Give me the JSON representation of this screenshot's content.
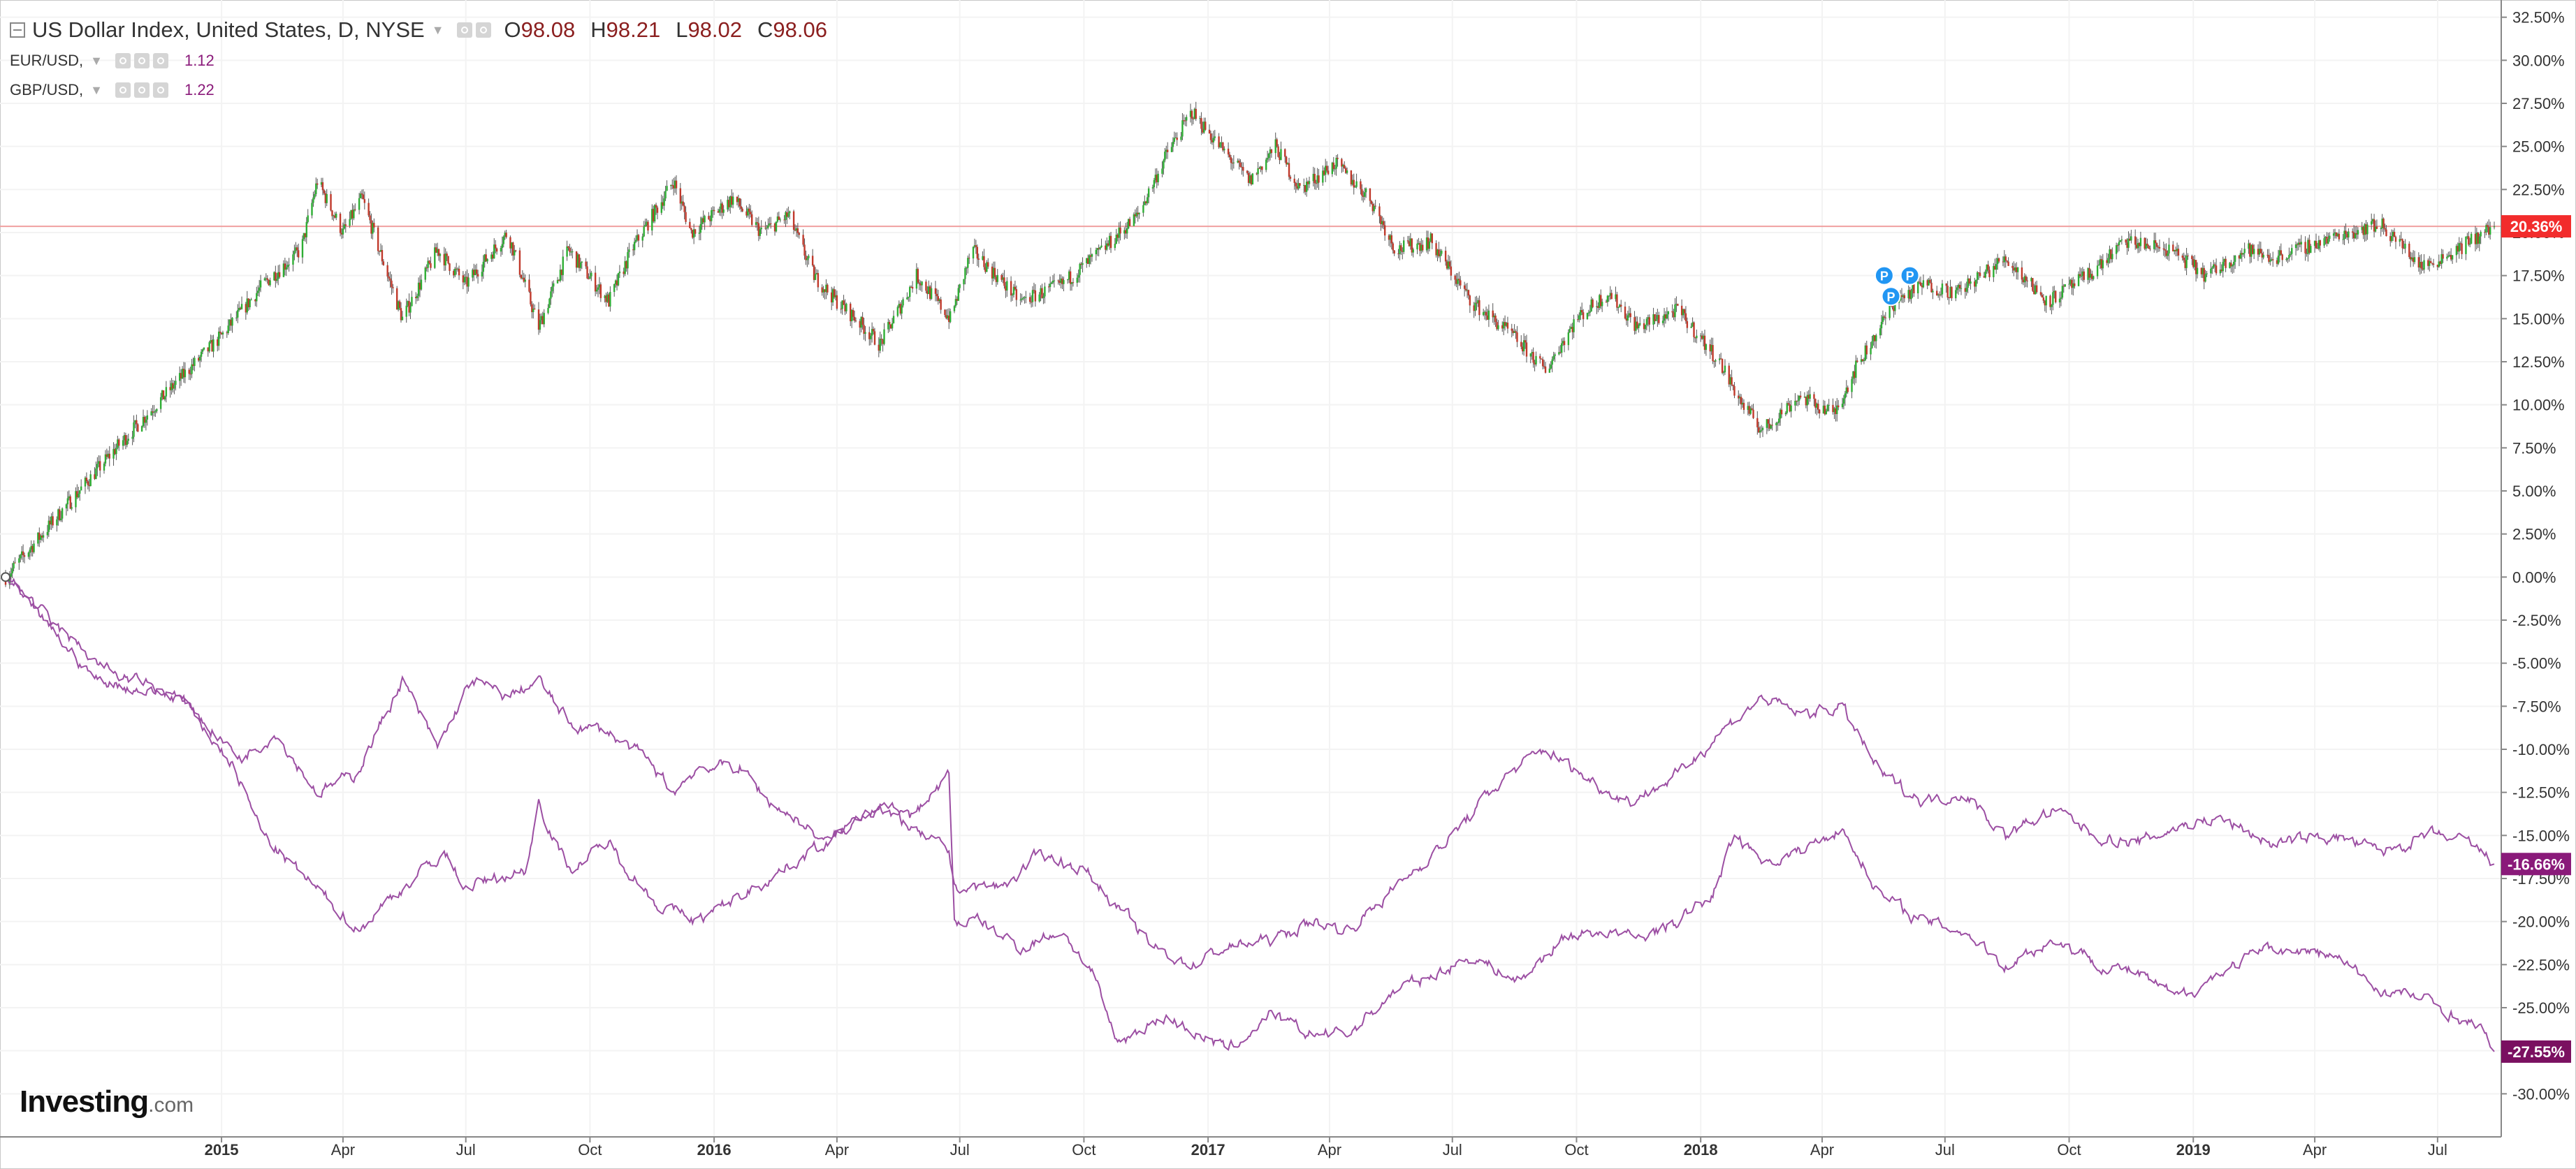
{
  "legend": {
    "main": {
      "title": "US Dollar Index, United States, D, NYSE",
      "o_label": "O",
      "o_value": "98.08",
      "h_label": "H",
      "h_value": "98.21",
      "l_label": "L",
      "l_value": "98.02",
      "c_label": "C",
      "c_value": "98.06"
    },
    "eur": {
      "name": "EUR/USD,",
      "value": "1.12"
    },
    "gbp": {
      "name": "GBP/USD,",
      "value": "1.22"
    }
  },
  "logo": {
    "main": "Investing",
    "suffix": ".com"
  },
  "colors": {
    "up": "#2eae34",
    "down": "#c0392b",
    "compare_line": "#9c4fa3",
    "last_price_line": "#f0a0a0",
    "last_price_badge": "#f22c2c",
    "eur_badge": "#8a1a7a",
    "gbp_badge": "#7a1060",
    "marker": "#2196f3",
    "grid": "#f3f3f3",
    "axis_line": "#888888",
    "axis_text": "#333333"
  },
  "chart_data": {
    "type": "line",
    "title": "US Dollar Index, United States, D, NYSE",
    "xlabel": "",
    "ylabel": "",
    "ylim": [
      -32.5,
      33.5
    ],
    "y_ticks": [
      "32.50%",
      "30.00%",
      "27.50%",
      "25.00%",
      "22.50%",
      "20.00%",
      "17.50%",
      "15.00%",
      "12.50%",
      "10.00%",
      "7.50%",
      "5.00%",
      "2.50%",
      "0.00%",
      "-2.50%",
      "-5.00%",
      "-7.50%",
      "-10.00%",
      "-12.50%",
      "-15.00%",
      "-17.50%",
      "-20.00%",
      "-22.50%",
      "-25.00%",
      "-27.50%",
      "-30.00%"
    ],
    "x_ticks": [
      {
        "label": "2015",
        "t": "2015-01-01",
        "bold": true
      },
      {
        "label": "Apr",
        "t": "2015-04-01",
        "bold": false
      },
      {
        "label": "Jul",
        "t": "2015-07-01",
        "bold": false
      },
      {
        "label": "Oct",
        "t": "2015-10-01",
        "bold": false
      },
      {
        "label": "2016",
        "t": "2016-01-01",
        "bold": true
      },
      {
        "label": "Apr",
        "t": "2016-04-01",
        "bold": false
      },
      {
        "label": "Jul",
        "t": "2016-07-01",
        "bold": false
      },
      {
        "label": "Oct",
        "t": "2016-10-01",
        "bold": false
      },
      {
        "label": "2017",
        "t": "2017-01-01",
        "bold": true
      },
      {
        "label": "Apr",
        "t": "2017-04-01",
        "bold": false
      },
      {
        "label": "Jul",
        "t": "2017-07-01",
        "bold": false
      },
      {
        "label": "Oct",
        "t": "2017-10-01",
        "bold": false
      },
      {
        "label": "2018",
        "t": "2018-01-01",
        "bold": true
      },
      {
        "label": "Apr",
        "t": "2018-04-01",
        "bold": false
      },
      {
        "label": "Jul",
        "t": "2018-07-01",
        "bold": false
      },
      {
        "label": "Oct",
        "t": "2018-10-01",
        "bold": false
      },
      {
        "label": "2019",
        "t": "2019-01-01",
        "bold": true
      },
      {
        "label": "Apr",
        "t": "2019-04-01",
        "bold": false
      },
      {
        "label": "Jul",
        "t": "2019-07-01",
        "bold": false
      }
    ],
    "x_start": "2014-07-25",
    "x_end": "2019-08-12",
    "series": [
      {
        "name": "US Dollar Index",
        "style": "candle",
        "last_label": "20.36%",
        "points": [
          [
            "2014-07-25",
            0
          ],
          [
            "2014-09-01",
            3.5
          ],
          [
            "2014-10-15",
            7.5
          ],
          [
            "2014-12-01",
            11.5
          ],
          [
            "2015-01-01",
            14
          ],
          [
            "2015-02-01",
            17
          ],
          [
            "2015-03-01",
            19
          ],
          [
            "2015-03-13",
            23
          ],
          [
            "2015-04-01",
            20
          ],
          [
            "2015-04-15",
            22
          ],
          [
            "2015-05-15",
            15
          ],
          [
            "2015-06-10",
            19
          ],
          [
            "2015-07-01",
            17
          ],
          [
            "2015-08-01",
            20
          ],
          [
            "2015-08-24",
            14.5
          ],
          [
            "2015-09-15",
            19
          ],
          [
            "2015-10-15",
            16
          ],
          [
            "2015-11-01",
            19
          ],
          [
            "2015-12-02",
            23
          ],
          [
            "2015-12-15",
            20
          ],
          [
            "2016-01-15",
            22
          ],
          [
            "2016-02-05",
            20
          ],
          [
            "2016-02-25",
            21
          ],
          [
            "2016-03-15",
            17.5
          ],
          [
            "2016-04-01",
            16
          ],
          [
            "2016-04-15",
            15
          ],
          [
            "2016-05-03",
            13.5
          ],
          [
            "2016-05-30",
            17.5
          ],
          [
            "2016-06-24",
            15
          ],
          [
            "2016-07-10",
            19
          ],
          [
            "2016-08-15",
            16
          ],
          [
            "2016-09-15",
            17
          ],
          [
            "2016-10-15",
            19
          ],
          [
            "2016-11-10",
            21
          ],
          [
            "2016-12-01",
            24.5
          ],
          [
            "2016-12-20",
            27
          ],
          [
            "2017-01-15",
            24.5
          ],
          [
            "2017-02-01",
            23
          ],
          [
            "2017-02-20",
            25
          ],
          [
            "2017-03-10",
            22.5
          ],
          [
            "2017-04-05",
            24
          ],
          [
            "2017-05-01",
            22
          ],
          [
            "2017-05-20",
            19
          ],
          [
            "2017-06-15",
            19.5
          ],
          [
            "2017-07-15",
            16
          ],
          [
            "2017-08-15",
            14
          ],
          [
            "2017-09-08",
            12
          ],
          [
            "2017-10-01",
            15
          ],
          [
            "2017-10-25",
            16.5
          ],
          [
            "2017-11-15",
            14.5
          ],
          [
            "2017-12-15",
            15.5
          ],
          [
            "2018-01-15",
            12.5
          ],
          [
            "2018-02-01",
            10
          ],
          [
            "2018-02-16",
            8.5
          ],
          [
            "2018-03-15",
            10.5
          ],
          [
            "2018-04-10",
            9.5
          ],
          [
            "2018-04-25",
            12
          ],
          [
            "2018-05-25",
            16
          ],
          [
            "2018-06-15",
            17
          ],
          [
            "2018-07-10",
            16.5
          ],
          [
            "2018-08-15",
            18.5
          ],
          [
            "2018-09-15",
            16
          ],
          [
            "2018-10-15",
            17.5
          ],
          [
            "2018-11-12",
            19.5
          ],
          [
            "2018-12-15",
            19
          ],
          [
            "2019-01-10",
            17.5
          ],
          [
            "2019-02-10",
            19
          ],
          [
            "2019-03-01",
            18.5
          ],
          [
            "2019-04-25",
            20
          ],
          [
            "2019-05-20",
            20.5
          ],
          [
            "2019-06-20",
            18
          ],
          [
            "2019-07-15",
            19
          ],
          [
            "2019-08-12",
            20.36
          ]
        ]
      },
      {
        "name": "EUR/USD",
        "style": "line",
        "last_label": "-16.66%",
        "points": [
          [
            "2014-07-25",
            0
          ],
          [
            "2014-09-01",
            -3.5
          ],
          [
            "2014-10-01",
            -6
          ],
          [
            "2014-12-01",
            -7
          ],
          [
            "2015-01-15",
            -10.5
          ],
          [
            "2015-02-10",
            -9
          ],
          [
            "2015-03-13",
            -12.5
          ],
          [
            "2015-04-10",
            -11.5
          ],
          [
            "2015-05-15",
            -6
          ],
          [
            "2015-06-10",
            -10
          ],
          [
            "2015-07-05",
            -6
          ],
          [
            "2015-08-01",
            -7
          ],
          [
            "2015-08-24",
            -6
          ],
          [
            "2015-09-15",
            -8.5
          ],
          [
            "2015-10-15",
            -9
          ],
          [
            "2015-11-10",
            -10.5
          ],
          [
            "2015-12-02",
            -12.5
          ],
          [
            "2015-12-20",
            -11
          ],
          [
            "2016-01-20",
            -11
          ],
          [
            "2016-02-10",
            -13
          ],
          [
            "2016-03-01",
            -14
          ],
          [
            "2016-03-25",
            -15.5
          ],
          [
            "2016-04-15",
            -14
          ],
          [
            "2016-05-03",
            -13
          ],
          [
            "2016-06-01",
            -15
          ],
          [
            "2016-06-23",
            -16
          ],
          [
            "2016-06-27",
            -18
          ],
          [
            "2016-08-01",
            -18
          ],
          [
            "2016-09-01",
            -16
          ],
          [
            "2016-10-01",
            -17
          ],
          [
            "2016-10-25",
            -19
          ],
          [
            "2016-11-20",
            -21.5
          ],
          [
            "2016-12-20",
            -22.5
          ],
          [
            "2017-01-15",
            -21.5
          ],
          [
            "2017-02-20",
            -21
          ],
          [
            "2017-03-20",
            -20
          ],
          [
            "2017-04-15",
            -20.5
          ],
          [
            "2017-05-20",
            -18
          ],
          [
            "2017-07-01",
            -15
          ],
          [
            "2017-08-10",
            -11.5
          ],
          [
            "2017-09-08",
            -10
          ],
          [
            "2017-10-15",
            -12
          ],
          [
            "2017-11-10",
            -13
          ],
          [
            "2017-12-15",
            -11.5
          ],
          [
            "2018-01-15",
            -9
          ],
          [
            "2018-02-16",
            -7
          ],
          [
            "2018-03-15",
            -8
          ],
          [
            "2018-04-15",
            -7.5
          ],
          [
            "2018-05-15",
            -11.5
          ],
          [
            "2018-06-15",
            -13
          ],
          [
            "2018-07-15",
            -12.5
          ],
          [
            "2018-08-15",
            -15
          ],
          [
            "2018-09-20",
            -13.5
          ],
          [
            "2018-10-20",
            -15
          ],
          [
            "2018-11-20",
            -15.5
          ],
          [
            "2018-12-20",
            -14.5
          ],
          [
            "2019-01-20",
            -14
          ],
          [
            "2019-03-01",
            -15.5
          ],
          [
            "2019-04-15",
            -15
          ],
          [
            "2019-05-20",
            -16
          ],
          [
            "2019-06-25",
            -15
          ],
          [
            "2019-07-25",
            -15.5
          ],
          [
            "2019-08-12",
            -16.66
          ]
        ]
      },
      {
        "name": "GBP/USD",
        "style": "line",
        "last_label": "-27.55%",
        "points": [
          [
            "2014-07-25",
            0
          ],
          [
            "2014-09-01",
            -3
          ],
          [
            "2014-10-10",
            -5.5
          ],
          [
            "2014-12-01",
            -7
          ],
          [
            "2015-01-10",
            -11
          ],
          [
            "2015-02-01",
            -15
          ],
          [
            "2015-02-25",
            -17
          ],
          [
            "2015-04-13",
            -20.5
          ],
          [
            "2015-05-01",
            -19
          ],
          [
            "2015-06-15",
            -16
          ],
          [
            "2015-07-01",
            -18
          ],
          [
            "2015-08-15",
            -17
          ],
          [
            "2015-08-24",
            -13
          ],
          [
            "2015-09-15",
            -17
          ],
          [
            "2015-10-15",
            -15.5
          ],
          [
            "2015-11-20",
            -19
          ],
          [
            "2015-12-20",
            -20
          ],
          [
            "2016-01-10",
            -19
          ],
          [
            "2016-02-10",
            -17.5
          ],
          [
            "2016-03-01",
            -16.5
          ],
          [
            "2016-04-01",
            -15
          ],
          [
            "2016-05-03",
            -13.5
          ],
          [
            "2016-05-25",
            -14
          ],
          [
            "2016-06-23",
            -11.5
          ],
          [
            "2016-06-27",
            -20
          ],
          [
            "2016-07-15",
            -20
          ],
          [
            "2016-08-15",
            -21.5
          ],
          [
            "2016-09-15",
            -20.5
          ],
          [
            "2016-10-07",
            -23
          ],
          [
            "2016-10-25",
            -27
          ],
          [
            "2016-12-01",
            -25.5
          ],
          [
            "2017-01-16",
            -27.5
          ],
          [
            "2017-02-15",
            -25.5
          ],
          [
            "2017-03-15",
            -26.5
          ],
          [
            "2017-04-15",
            -26.5
          ],
          [
            "2017-05-20",
            -24
          ],
          [
            "2017-06-20",
            -23
          ],
          [
            "2017-07-15",
            -22
          ],
          [
            "2017-08-20",
            -23.5
          ],
          [
            "2017-09-20",
            -21
          ],
          [
            "2017-10-20",
            -20.5
          ],
          [
            "2017-11-15",
            -21
          ],
          [
            "2017-12-15",
            -20
          ],
          [
            "2018-01-10",
            -18.5
          ],
          [
            "2018-01-26",
            -15
          ],
          [
            "2018-02-20",
            -16.5
          ],
          [
            "2018-03-15",
            -16
          ],
          [
            "2018-04-15",
            -14.5
          ],
          [
            "2018-05-15",
            -18.5
          ],
          [
            "2018-06-15",
            -20
          ],
          [
            "2018-07-15",
            -20.5
          ],
          [
            "2018-08-15",
            -22.5
          ],
          [
            "2018-09-20",
            -21
          ],
          [
            "2018-10-25",
            -22.5
          ],
          [
            "2018-11-20",
            -23
          ],
          [
            "2018-12-20",
            -24.5
          ],
          [
            "2019-01-20",
            -23
          ],
          [
            "2019-03-01",
            -21.5
          ],
          [
            "2019-04-15",
            -22
          ],
          [
            "2019-05-20",
            -24
          ],
          [
            "2019-06-20",
            -24.5
          ],
          [
            "2019-07-15",
            -25.5
          ],
          [
            "2019-08-05",
            -26.5
          ],
          [
            "2019-08-12",
            -27.55
          ]
        ]
      }
    ],
    "reference_line": 20.36,
    "markers": [
      {
        "t": "2018-05-17",
        "y": 17.5,
        "label": "P"
      },
      {
        "t": "2018-05-22",
        "y": 16.3,
        "label": "P"
      },
      {
        "t": "2018-06-05",
        "y": 17.5,
        "label": "P"
      }
    ]
  }
}
